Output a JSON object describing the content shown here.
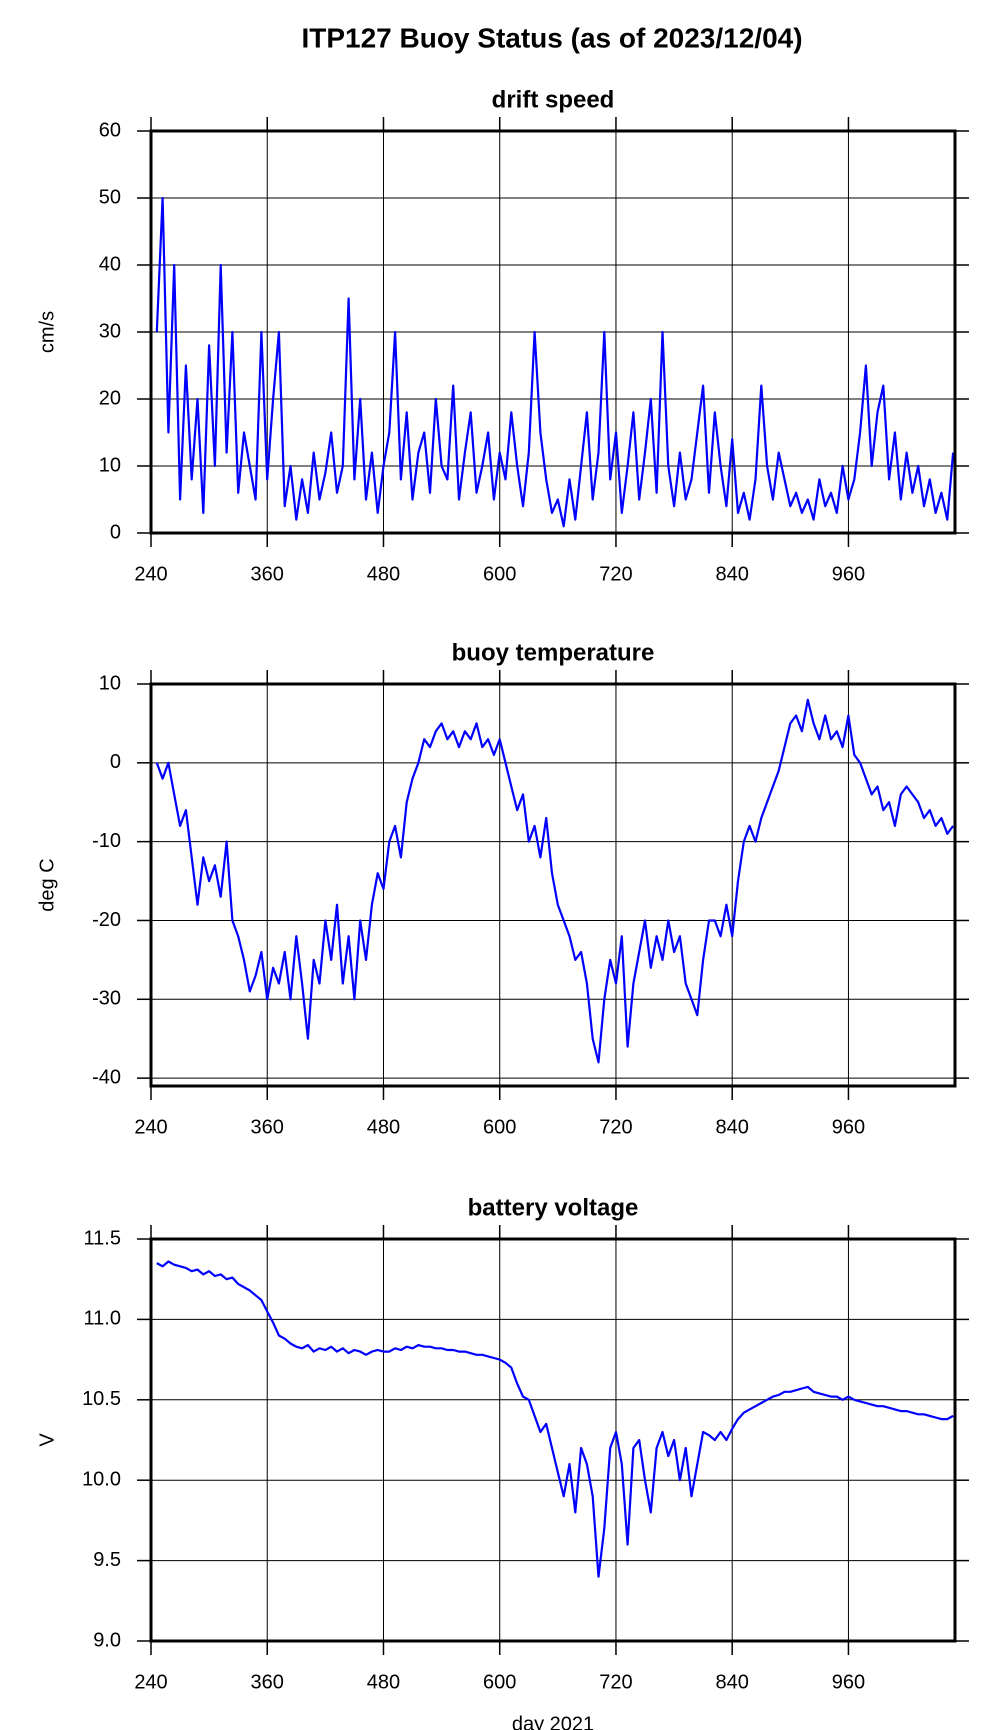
{
  "title": "ITP127 Buoy Status (as of 2023/12/04)",
  "chart_data": [
    {
      "type": "line",
      "title": "drift speed",
      "ylabel": "cm/s",
      "color": "#0000ff",
      "grid": true,
      "xlim": [
        240,
        1070
      ],
      "xticks": [
        240,
        360,
        480,
        600,
        720,
        840,
        960
      ],
      "ylim": [
        0,
        60
      ],
      "yticks": [
        0,
        10,
        20,
        30,
        40,
        50,
        60
      ],
      "x": [
        246,
        252,
        258,
        264,
        270,
        276,
        282,
        288,
        294,
        300,
        306,
        312,
        318,
        324,
        330,
        336,
        342,
        348,
        354,
        360,
        366,
        372,
        378,
        384,
        390,
        396,
        402,
        408,
        414,
        420,
        426,
        432,
        438,
        444,
        450,
        456,
        462,
        468,
        474,
        480,
        486,
        492,
        498,
        504,
        510,
        516,
        522,
        528,
        534,
        540,
        546,
        552,
        558,
        564,
        570,
        576,
        582,
        588,
        594,
        600,
        606,
        612,
        618,
        624,
        630,
        636,
        642,
        648,
        654,
        660,
        666,
        672,
        678,
        684,
        690,
        696,
        702,
        708,
        714,
        720,
        726,
        732,
        738,
        744,
        750,
        756,
        762,
        768,
        774,
        780,
        786,
        792,
        798,
        804,
        810,
        816,
        822,
        828,
        834,
        840,
        846,
        852,
        858,
        864,
        870,
        876,
        882,
        888,
        894,
        900,
        906,
        912,
        918,
        924,
        930,
        936,
        942,
        948,
        954,
        960,
        966,
        972,
        978,
        984,
        990,
        996,
        1002,
        1008,
        1014,
        1020,
        1026,
        1032,
        1038,
        1044,
        1050,
        1056,
        1062,
        1068
      ],
      "values": [
        30,
        50,
        15,
        40,
        5,
        25,
        8,
        20,
        3,
        28,
        10,
        40,
        12,
        30,
        6,
        15,
        10,
        5,
        30,
        8,
        20,
        30,
        4,
        10,
        2,
        8,
        3,
        12,
        5,
        9,
        15,
        6,
        10,
        35,
        8,
        20,
        5,
        12,
        3,
        10,
        15,
        30,
        8,
        18,
        5,
        12,
        15,
        6,
        20,
        10,
        8,
        22,
        5,
        12,
        18,
        6,
        10,
        15,
        5,
        12,
        8,
        18,
        10,
        4,
        12,
        30,
        15,
        8,
        3,
        5,
        1,
        8,
        2,
        10,
        18,
        5,
        12,
        30,
        8,
        15,
        3,
        10,
        18,
        5,
        12,
        20,
        6,
        30,
        10,
        4,
        12,
        5,
        8,
        15,
        22,
        6,
        18,
        10,
        4,
        14,
        3,
        6,
        2,
        8,
        22,
        10,
        5,
        12,
        8,
        4,
        6,
        3,
        5,
        2,
        8,
        4,
        6,
        3,
        10,
        5,
        8,
        15,
        25,
        10,
        18,
        22,
        8,
        15,
        5,
        12,
        6,
        10,
        4,
        8,
        3,
        6,
        2,
        12
      ]
    },
    {
      "type": "line",
      "title": "buoy temperature",
      "ylabel": "deg C",
      "color": "#0000ff",
      "grid": true,
      "xlim": [
        240,
        1070
      ],
      "xticks": [
        240,
        360,
        480,
        600,
        720,
        840,
        960
      ],
      "ylim": [
        -41,
        10
      ],
      "yticks": [
        -40,
        -30,
        -20,
        -10,
        0,
        10
      ],
      "x": [
        246,
        252,
        258,
        264,
        270,
        276,
        282,
        288,
        294,
        300,
        306,
        312,
        318,
        324,
        330,
        336,
        342,
        348,
        354,
        360,
        366,
        372,
        378,
        384,
        390,
        396,
        402,
        408,
        414,
        420,
        426,
        432,
        438,
        444,
        450,
        456,
        462,
        468,
        474,
        480,
        486,
        492,
        498,
        504,
        510,
        516,
        522,
        528,
        534,
        540,
        546,
        552,
        558,
        564,
        570,
        576,
        582,
        588,
        594,
        600,
        606,
        612,
        618,
        624,
        630,
        636,
        642,
        648,
        654,
        660,
        666,
        672,
        678,
        684,
        690,
        696,
        702,
        708,
        714,
        720,
        726,
        732,
        738,
        744,
        750,
        756,
        762,
        768,
        774,
        780,
        786,
        792,
        798,
        804,
        810,
        816,
        822,
        828,
        834,
        840,
        846,
        852,
        858,
        864,
        870,
        876,
        882,
        888,
        894,
        900,
        906,
        912,
        918,
        924,
        930,
        936,
        942,
        948,
        954,
        960,
        966,
        972,
        978,
        984,
        990,
        996,
        1002,
        1008,
        1014,
        1020,
        1026,
        1032,
        1038,
        1044,
        1050,
        1056,
        1062,
        1068
      ],
      "values": [
        0,
        -2,
        0,
        -4,
        -8,
        -6,
        -12,
        -18,
        -12,
        -15,
        -13,
        -17,
        -10,
        -20,
        -22,
        -25,
        -29,
        -27,
        -24,
        -30,
        -26,
        -28,
        -24,
        -30,
        -22,
        -28,
        -35,
        -25,
        -28,
        -20,
        -25,
        -18,
        -28,
        -22,
        -30,
        -20,
        -25,
        -18,
        -14,
        -16,
        -10,
        -8,
        -12,
        -5,
        -2,
        0,
        3,
        2,
        4,
        5,
        3,
        4,
        2,
        4,
        3,
        5,
        2,
        3,
        1,
        3,
        0,
        -3,
        -6,
        -4,
        -10,
        -8,
        -12,
        -7,
        -14,
        -18,
        -20,
        -22,
        -25,
        -24,
        -28,
        -35,
        -38,
        -30,
        -25,
        -28,
        -22,
        -36,
        -28,
        -24,
        -20,
        -26,
        -22,
        -25,
        -20,
        -24,
        -22,
        -28,
        -30,
        -32,
        -25,
        -20,
        -20,
        -22,
        -18,
        -22,
        -15,
        -10,
        -8,
        -10,
        -7,
        -5,
        -3,
        -1,
        2,
        5,
        6,
        4,
        8,
        5,
        3,
        6,
        3,
        4,
        2,
        6,
        1,
        0,
        -2,
        -4,
        -3,
        -6,
        -5,
        -8,
        -4,
        -3,
        -4,
        -5,
        -7,
        -6,
        -8,
        -7,
        -9,
        -8
      ]
    },
    {
      "type": "line",
      "title": "battery voltage",
      "ylabel": "V",
      "xlabel": "day 2021",
      "color": "#0000ff",
      "grid": true,
      "xlim": [
        240,
        1070
      ],
      "xticks": [
        240,
        360,
        480,
        600,
        720,
        840,
        960
      ],
      "ylim": [
        9,
        11.5
      ],
      "yticks": [
        {
          "value": 9,
          "label": "9.0"
        },
        9.5,
        {
          "value": 10,
          "label": "10.0"
        },
        10.5,
        {
          "value": 11,
          "label": "11.0"
        },
        11.5
      ],
      "x": [
        246,
        252,
        258,
        264,
        270,
        276,
        282,
        288,
        294,
        300,
        306,
        312,
        318,
        324,
        330,
        336,
        342,
        348,
        354,
        360,
        366,
        372,
        378,
        384,
        390,
        396,
        402,
        408,
        414,
        420,
        426,
        432,
        438,
        444,
        450,
        456,
        462,
        468,
        474,
        480,
        486,
        492,
        498,
        504,
        510,
        516,
        522,
        528,
        534,
        540,
        546,
        552,
        558,
        564,
        570,
        576,
        582,
        588,
        594,
        600,
        606,
        612,
        618,
        624,
        630,
        636,
        642,
        648,
        654,
        660,
        666,
        672,
        678,
        684,
        690,
        696,
        702,
        708,
        714,
        720,
        726,
        732,
        738,
        744,
        750,
        756,
        762,
        768,
        774,
        780,
        786,
        792,
        798,
        804,
        810,
        816,
        822,
        828,
        834,
        840,
        846,
        852,
        858,
        864,
        870,
        876,
        882,
        888,
        894,
        900,
        906,
        912,
        918,
        924,
        930,
        936,
        942,
        948,
        954,
        960,
        966,
        972,
        978,
        984,
        990,
        996,
        1002,
        1008,
        1014,
        1020,
        1026,
        1032,
        1038,
        1044,
        1050,
        1056,
        1062,
        1068
      ],
      "values": [
        11.35,
        11.33,
        11.36,
        11.34,
        11.33,
        11.32,
        11.3,
        11.31,
        11.28,
        11.3,
        11.27,
        11.28,
        11.25,
        11.26,
        11.22,
        11.2,
        11.18,
        11.15,
        11.12,
        11.05,
        10.98,
        10.9,
        10.88,
        10.85,
        10.83,
        10.82,
        10.84,
        10.8,
        10.82,
        10.81,
        10.83,
        10.8,
        10.82,
        10.79,
        10.81,
        10.8,
        10.78,
        10.8,
        10.81,
        10.8,
        10.8,
        10.82,
        10.81,
        10.83,
        10.82,
        10.84,
        10.83,
        10.83,
        10.82,
        10.82,
        10.81,
        10.81,
        10.8,
        10.8,
        10.79,
        10.78,
        10.78,
        10.77,
        10.76,
        10.75,
        10.73,
        10.7,
        10.6,
        10.52,
        10.5,
        10.4,
        10.3,
        10.35,
        10.2,
        10.05,
        9.9,
        10.1,
        9.8,
        10.2,
        10.1,
        9.9,
        9.4,
        9.7,
        10.2,
        10.3,
        10.1,
        9.6,
        10.2,
        10.25,
        10.0,
        9.8,
        10.2,
        10.3,
        10.15,
        10.25,
        10.0,
        10.2,
        9.9,
        10.1,
        10.3,
        10.28,
        10.25,
        10.3,
        10.25,
        10.32,
        10.38,
        10.42,
        10.44,
        10.46,
        10.48,
        10.5,
        10.52,
        10.53,
        10.55,
        10.55,
        10.56,
        10.57,
        10.58,
        10.55,
        10.54,
        10.53,
        10.52,
        10.52,
        10.5,
        10.52,
        10.5,
        10.49,
        10.48,
        10.47,
        10.46,
        10.46,
        10.45,
        10.44,
        10.43,
        10.43,
        10.42,
        10.41,
        10.41,
        10.4,
        10.39,
        10.38,
        10.38,
        10.4
      ]
    }
  ]
}
